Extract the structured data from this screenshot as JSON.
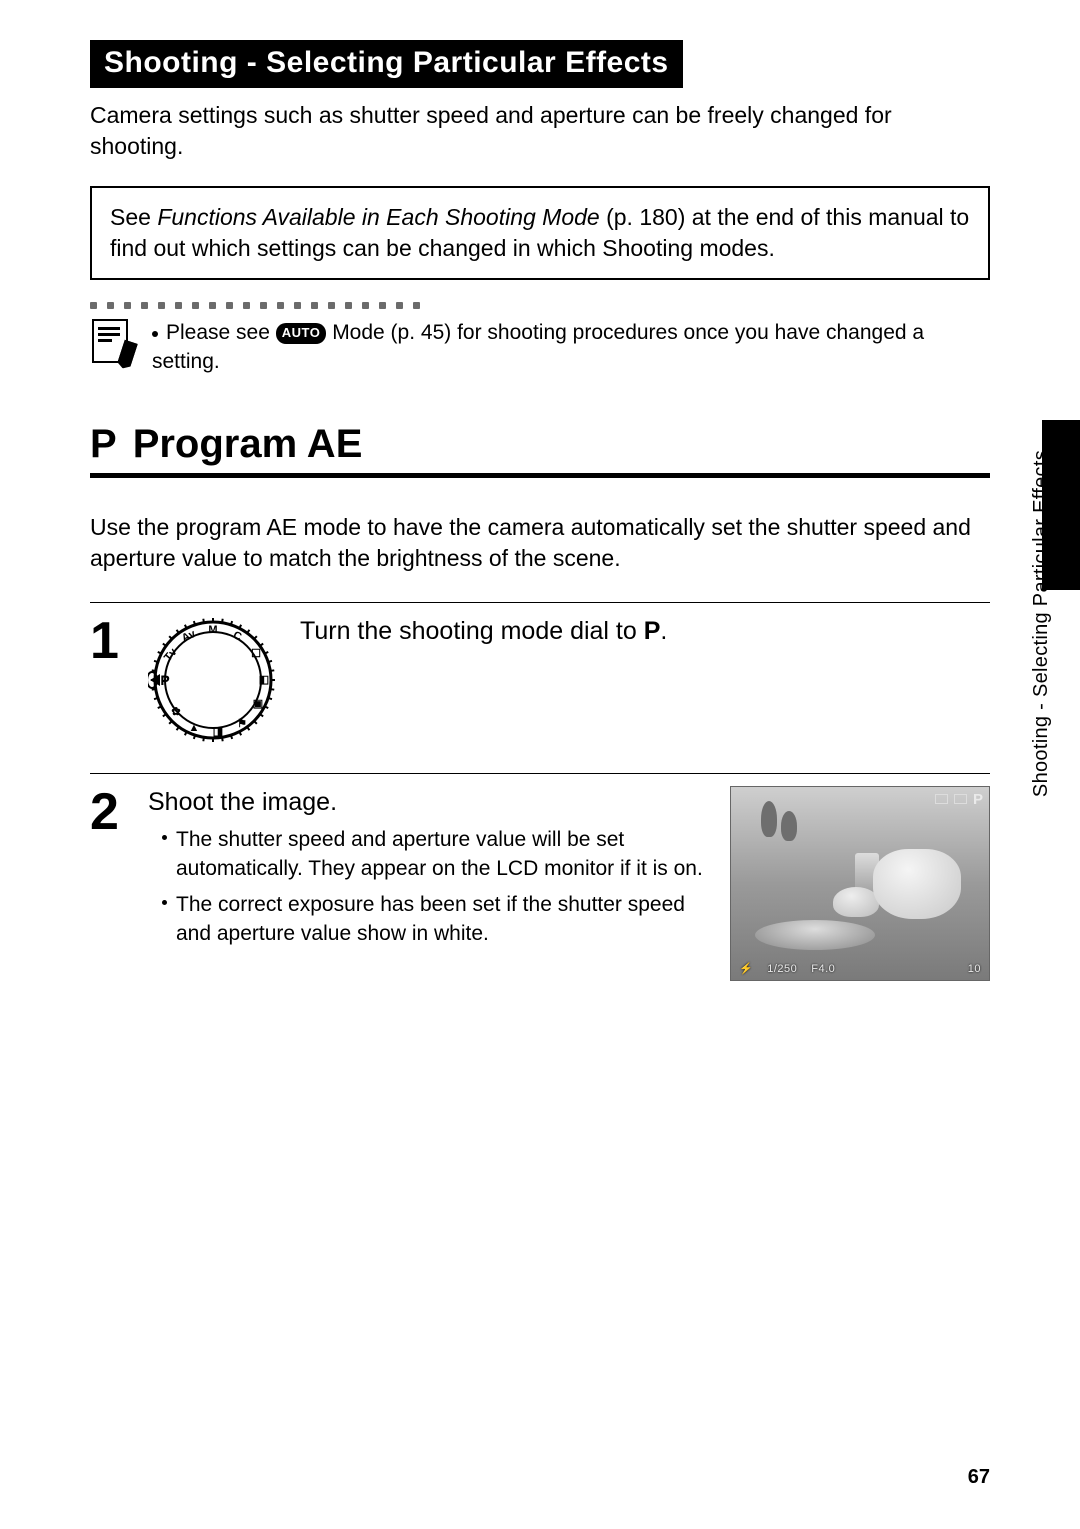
{
  "chapter_title": "Shooting - Selecting Particular Effects",
  "intro": "Camera settings such as shutter speed and aperture can be freely changed for shooting.",
  "note_box": {
    "prefix": "See ",
    "italic": "Functions Available in Each Shooting Mode",
    "suffix": " (p. 180) at the end of this manual to find out which settings can be changed in which Shooting modes."
  },
  "dots_count": 20,
  "tip": {
    "prefix": "Please see ",
    "pill": "AUTO",
    "suffix": " Mode (p. 45) for shooting procedures once you have changed a setting."
  },
  "section": {
    "prefix_letter": "P",
    "title": "Program AE",
    "intro": "Use the program AE mode to have the camera automatically set the shutter speed and aperture value to match the brightness of the scene."
  },
  "steps": [
    {
      "num": "1",
      "heading_prefix": "Turn the shooting mode dial to ",
      "heading_bold": "P",
      "heading_suffix": "."
    },
    {
      "num": "2",
      "heading": "Shoot the image.",
      "bullets": [
        "The shutter speed and aperture value will be set automatically. They appear on the LCD monitor if it is on.",
        "The correct exposure has been set if the shutter speed and aperture value show in white."
      ]
    }
  ],
  "lcd_overlay": {
    "top_p": "P",
    "bottom_speed": "1/250",
    "bottom_f": "F4.0",
    "bottom_right": "10"
  },
  "side_label": "Shooting - Selecting Particular Effects",
  "page_number": "67",
  "colors": {
    "black": "#000000",
    "white": "#ffffff",
    "dot_grey": "#6b6b6b"
  }
}
